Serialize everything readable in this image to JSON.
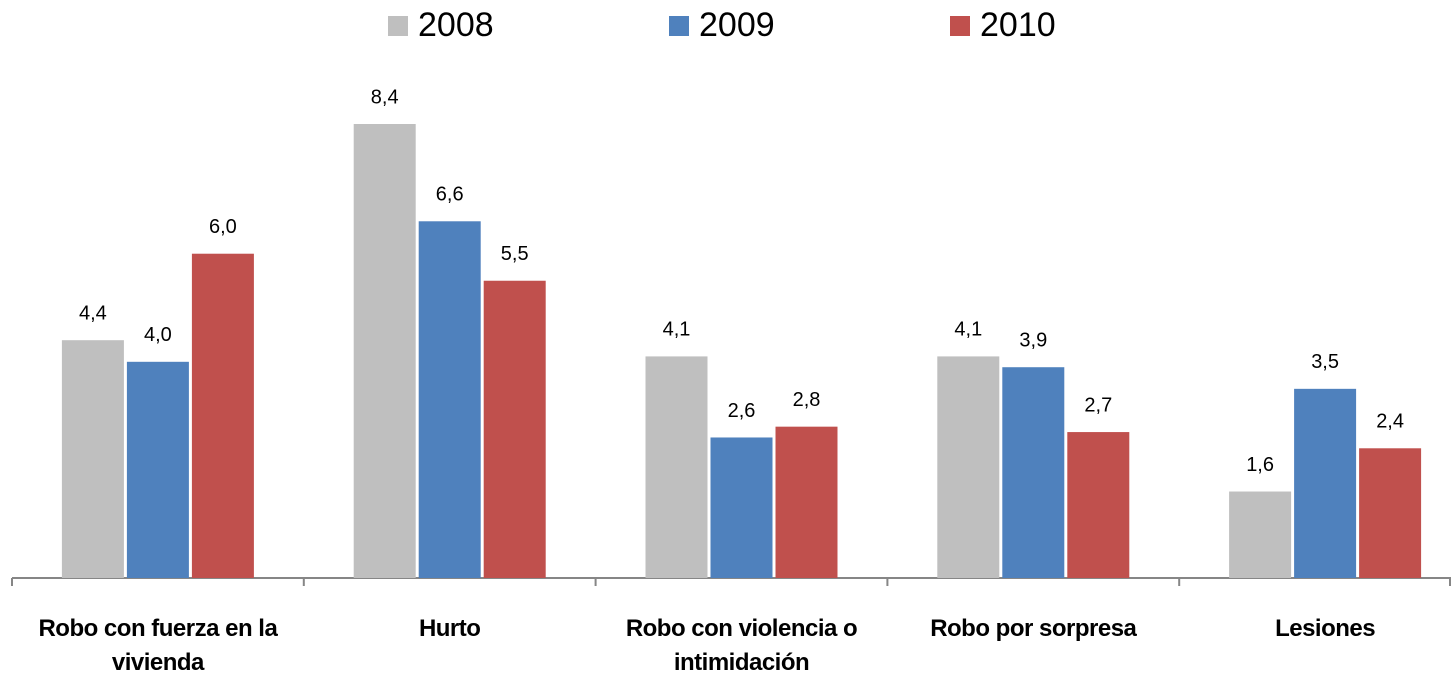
{
  "chart_data": {
    "type": "bar",
    "categories": [
      "Robo con fuerza en la vivienda",
      "Hurto",
      "Robo con violencia o intimidación",
      "Robo por sorpresa",
      "Lesiones"
    ],
    "series": [
      {
        "name": "2008",
        "color": "#bfbfbf",
        "values": [
          4.4,
          8.4,
          4.1,
          4.1,
          1.6
        ],
        "value_labels": [
          "4,4",
          "8,4",
          "4,1",
          "4,1",
          "1,6"
        ]
      },
      {
        "name": "2009",
        "color": "#4f81bd",
        "values": [
          4.0,
          6.6,
          2.6,
          3.9,
          3.5
        ],
        "value_labels": [
          "4,0",
          "6,6",
          "2,6",
          "3,9",
          "3,5"
        ]
      },
      {
        "name": "2010",
        "color": "#c0504d",
        "values": [
          6.0,
          5.5,
          2.8,
          2.7,
          2.4
        ],
        "value_labels": [
          "6,0",
          "5,5",
          "2,8",
          "2,7",
          "2,4"
        ]
      }
    ],
    "legend": "top"
  }
}
